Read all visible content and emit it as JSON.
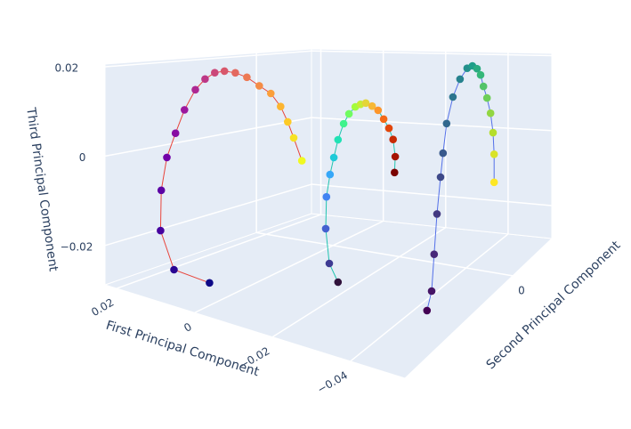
{
  "chart_data": {
    "type": "scatter3d",
    "xlabel": "First Principal Component",
    "ylabel": "Second Principal Component",
    "zlabel": "Third Principal Component",
    "xlim": [
      -0.054,
      0.023
    ],
    "ylim": [
      -0.044,
      0.016
    ],
    "zlim": [
      -0.0288,
      0.0206
    ],
    "xticks": [
      0.02,
      0,
      {
        "value": -0.02,
        "label": "−0.02"
      },
      {
        "value": -0.04,
        "label": "−0.04"
      }
    ],
    "yticks": [
      0
    ],
    "zticks": [
      {
        "value": -0.02,
        "label": "−0.02"
      },
      0,
      0.02
    ],
    "grid": true,
    "series": [
      {
        "color": "#e8453c",
        "colorscale": "Plasma",
        "x": [
          0.0061,
          0.0156,
          0.0192,
          0.019,
          0.0175,
          0.0152,
          0.0128,
          0.0099,
          0.0073,
          0.0047,
          0.0021,
          -0.0008,
          -0.0039,
          -0.0072,
          -0.0103,
          -0.0129,
          -0.0148,
          -0.0164,
          -0.0186
        ],
        "y": [
          -0.032,
          -0.032,
          -0.032,
          -0.032,
          -0.032,
          -0.032,
          -0.032,
          -0.032,
          -0.032,
          -0.032,
          -0.032,
          -0.032,
          -0.032,
          -0.032,
          -0.032,
          -0.032,
          -0.032,
          -0.032,
          -0.032
        ],
        "z": [
          -0.0276,
          -0.0268,
          -0.0185,
          -0.009,
          -0.001,
          0.0051,
          0.011,
          0.0162,
          0.0191,
          0.021,
          0.0218,
          0.0219,
          0.0214,
          0.02,
          0.0188,
          0.0163,
          0.0132,
          0.0099,
          0.0052
        ]
      },
      {
        "color": "#22c4b0",
        "colorscale": "Turbo",
        "x": [
          -0.014,
          -0.0115,
          -0.0105,
          -0.0107,
          -0.0117,
          -0.0128,
          -0.014,
          -0.0156,
          -0.0171,
          -0.0189,
          -0.0204,
          -0.0219,
          -0.0237,
          -0.0254,
          -0.027,
          -0.0285,
          -0.0297,
          -0.0303,
          -0.0301
        ],
        "y": [
          -0.014,
          -0.014,
          -0.014,
          -0.014,
          -0.014,
          -0.014,
          -0.014,
          -0.014,
          -0.014,
          -0.014,
          -0.014,
          -0.014,
          -0.014,
          -0.014,
          -0.014,
          -0.014,
          -0.014,
          -0.014,
          -0.014
        ],
        "z": [
          -0.0299,
          -0.0258,
          -0.0175,
          -0.0097,
          -0.0041,
          0.0002,
          0.0047,
          0.0088,
          0.0114,
          0.0133,
          0.0141,
          0.0146,
          0.0141,
          0.0133,
          0.0114,
          0.0094,
          0.0069,
          0.0029,
          -0.0009
        ]
      },
      {
        "color": "#5470e8",
        "colorscale": "Viridis",
        "x": [
          -0.0416,
          -0.0429,
          -0.0436,
          -0.0444,
          -0.0454,
          -0.0461,
          -0.0471,
          -0.0489,
          -0.0509,
          -0.0529,
          -0.0544,
          -0.0557,
          -0.0567,
          -0.0575,
          -0.0585,
          -0.0595,
          -0.0602,
          -0.0605,
          -0.0605
        ],
        "y": [
          -0.017,
          -0.017,
          -0.017,
          -0.017,
          -0.017,
          -0.017,
          -0.017,
          -0.017,
          -0.017,
          -0.017,
          -0.017,
          -0.017,
          -0.017,
          -0.017,
          -0.017,
          -0.017,
          -0.017,
          -0.017,
          -0.017
        ],
        "z": [
          -0.03,
          -0.0253,
          -0.0167,
          -0.0073,
          0.0013,
          0.0069,
          0.0138,
          0.0201,
          0.0244,
          0.0271,
          0.0278,
          0.0273,
          0.026,
          0.0235,
          0.021,
          0.0177,
          0.0134,
          0.0086,
          0.0023
        ]
      }
    ]
  }
}
